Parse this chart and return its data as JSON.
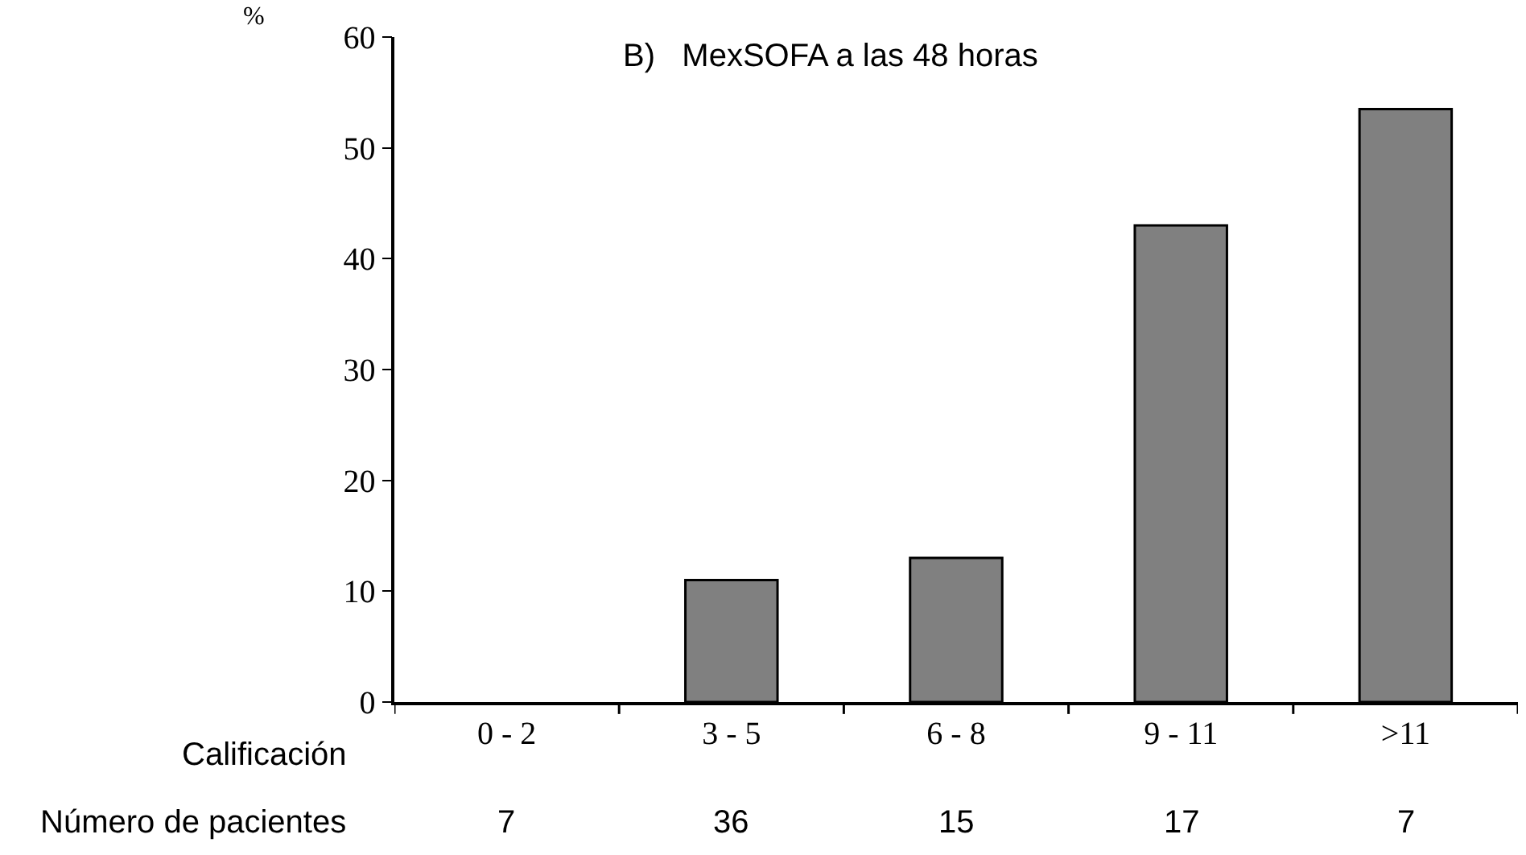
{
  "chart_data": {
    "type": "bar",
    "title": "B)   MexSOFA a las 48 horas",
    "ylabel": "%",
    "xlabel": "Calificación",
    "categories": [
      "0 - 2",
      "3 - 5",
      "6 - 8",
      "9 - 11",
      ">11"
    ],
    "values": [
      0,
      11,
      13,
      43,
      53.5
    ],
    "color": "#808080",
    "ylim": [
      0,
      60
    ],
    "yticks": [
      0,
      10,
      20,
      30,
      40,
      50,
      60
    ],
    "annotations": [
      "Número de pacientes",
      "7",
      "36",
      "15",
      "17",
      "7"
    ]
  }
}
